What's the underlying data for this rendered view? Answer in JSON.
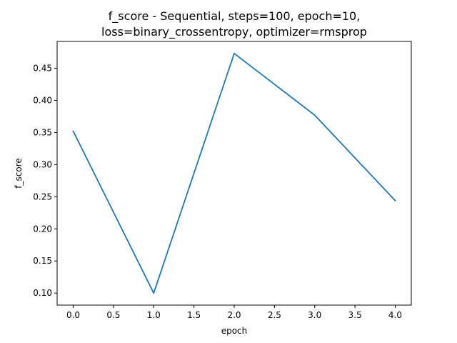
{
  "chart_data": {
    "type": "line",
    "title_lines": [
      "f_score - Sequential, steps=100, epoch=10,",
      "loss=binary_crossentropy, optimizer=rmsprop"
    ],
    "xlabel": "epoch",
    "ylabel": "f_score",
    "x": [
      0,
      1,
      2,
      3,
      4
    ],
    "series": [
      {
        "values": [
          0.352,
          0.1,
          0.473,
          0.377,
          0.244
        ],
        "color": "#1f77b4"
      }
    ],
    "xlim": [
      -0.2,
      4.2
    ],
    "ylim": [
      0.0813,
      0.4917
    ],
    "x_ticks": [
      {
        "value": 0.0,
        "label": "0.0"
      },
      {
        "value": 0.5,
        "label": "0.5"
      },
      {
        "value": 1.0,
        "label": "1.0"
      },
      {
        "value": 1.5,
        "label": "1.5"
      },
      {
        "value": 2.0,
        "label": "2.0"
      },
      {
        "value": 2.5,
        "label": "2.5"
      },
      {
        "value": 3.0,
        "label": "3.0"
      },
      {
        "value": 3.5,
        "label": "3.5"
      },
      {
        "value": 4.0,
        "label": "4.0"
      }
    ],
    "y_ticks": [
      {
        "value": 0.1,
        "label": "0.10"
      },
      {
        "value": 0.15,
        "label": "0.15"
      },
      {
        "value": 0.2,
        "label": "0.20"
      },
      {
        "value": 0.25,
        "label": "0.25"
      },
      {
        "value": 0.3,
        "label": "0.30"
      },
      {
        "value": 0.35,
        "label": "0.35"
      },
      {
        "value": 0.4,
        "label": "0.40"
      },
      {
        "value": 0.45,
        "label": "0.45"
      }
    ],
    "grid": false,
    "legend": "none"
  }
}
